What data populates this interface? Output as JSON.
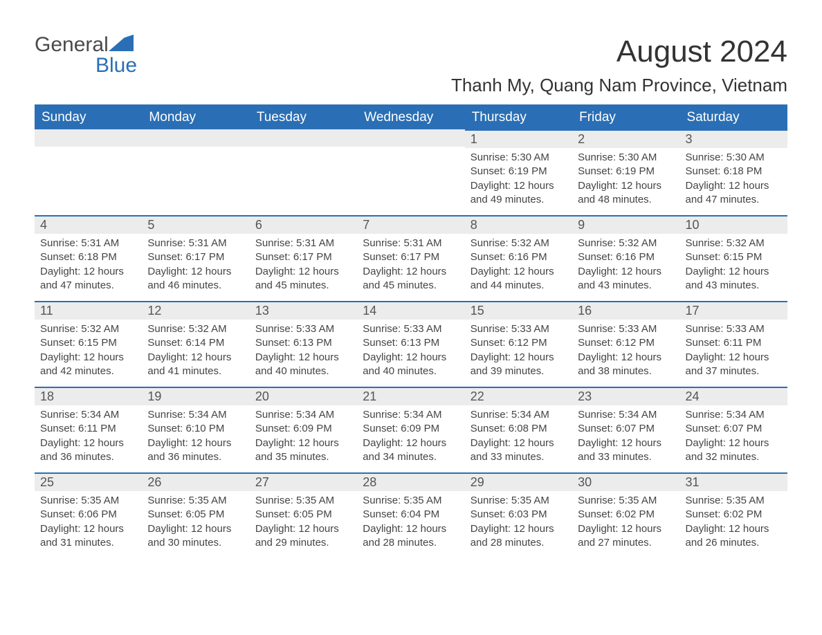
{
  "logo": {
    "word1": "General",
    "word2": "Blue",
    "mark_color": "#2a6fb5",
    "text_color": "#4a4a4a"
  },
  "title": "August 2024",
  "location": "Thanh My, Quang Nam Province, Vietnam",
  "colors": {
    "header_bg": "#2a6fb5",
    "header_text": "#ffffff",
    "daynum_bg": "#ececec",
    "daynum_text": "#555555",
    "body_text": "#444444",
    "row_border": "#2a6fb5",
    "page_bg": "#ffffff"
  },
  "typography": {
    "title_fontsize": 44,
    "location_fontsize": 26,
    "weekday_fontsize": 19,
    "daynum_fontsize": 18,
    "body_fontsize": 15,
    "logo_fontsize": 30
  },
  "calendar": {
    "type": "table",
    "weekdays": [
      "Sunday",
      "Monday",
      "Tuesday",
      "Wednesday",
      "Thursday",
      "Friday",
      "Saturday"
    ],
    "first_weekday_index": 4,
    "days": [
      {
        "n": 1,
        "sunrise": "5:30 AM",
        "sunset": "6:19 PM",
        "daylight": "12 hours and 49 minutes."
      },
      {
        "n": 2,
        "sunrise": "5:30 AM",
        "sunset": "6:19 PM",
        "daylight": "12 hours and 48 minutes."
      },
      {
        "n": 3,
        "sunrise": "5:30 AM",
        "sunset": "6:18 PM",
        "daylight": "12 hours and 47 minutes."
      },
      {
        "n": 4,
        "sunrise": "5:31 AM",
        "sunset": "6:18 PM",
        "daylight": "12 hours and 47 minutes."
      },
      {
        "n": 5,
        "sunrise": "5:31 AM",
        "sunset": "6:17 PM",
        "daylight": "12 hours and 46 minutes."
      },
      {
        "n": 6,
        "sunrise": "5:31 AM",
        "sunset": "6:17 PM",
        "daylight": "12 hours and 45 minutes."
      },
      {
        "n": 7,
        "sunrise": "5:31 AM",
        "sunset": "6:17 PM",
        "daylight": "12 hours and 45 minutes."
      },
      {
        "n": 8,
        "sunrise": "5:32 AM",
        "sunset": "6:16 PM",
        "daylight": "12 hours and 44 minutes."
      },
      {
        "n": 9,
        "sunrise": "5:32 AM",
        "sunset": "6:16 PM",
        "daylight": "12 hours and 43 minutes."
      },
      {
        "n": 10,
        "sunrise": "5:32 AM",
        "sunset": "6:15 PM",
        "daylight": "12 hours and 43 minutes."
      },
      {
        "n": 11,
        "sunrise": "5:32 AM",
        "sunset": "6:15 PM",
        "daylight": "12 hours and 42 minutes."
      },
      {
        "n": 12,
        "sunrise": "5:32 AM",
        "sunset": "6:14 PM",
        "daylight": "12 hours and 41 minutes."
      },
      {
        "n": 13,
        "sunrise": "5:33 AM",
        "sunset": "6:13 PM",
        "daylight": "12 hours and 40 minutes."
      },
      {
        "n": 14,
        "sunrise": "5:33 AM",
        "sunset": "6:13 PM",
        "daylight": "12 hours and 40 minutes."
      },
      {
        "n": 15,
        "sunrise": "5:33 AM",
        "sunset": "6:12 PM",
        "daylight": "12 hours and 39 minutes."
      },
      {
        "n": 16,
        "sunrise": "5:33 AM",
        "sunset": "6:12 PM",
        "daylight": "12 hours and 38 minutes."
      },
      {
        "n": 17,
        "sunrise": "5:33 AM",
        "sunset": "6:11 PM",
        "daylight": "12 hours and 37 minutes."
      },
      {
        "n": 18,
        "sunrise": "5:34 AM",
        "sunset": "6:11 PM",
        "daylight": "12 hours and 36 minutes."
      },
      {
        "n": 19,
        "sunrise": "5:34 AM",
        "sunset": "6:10 PM",
        "daylight": "12 hours and 36 minutes."
      },
      {
        "n": 20,
        "sunrise": "5:34 AM",
        "sunset": "6:09 PM",
        "daylight": "12 hours and 35 minutes."
      },
      {
        "n": 21,
        "sunrise": "5:34 AM",
        "sunset": "6:09 PM",
        "daylight": "12 hours and 34 minutes."
      },
      {
        "n": 22,
        "sunrise": "5:34 AM",
        "sunset": "6:08 PM",
        "daylight": "12 hours and 33 minutes."
      },
      {
        "n": 23,
        "sunrise": "5:34 AM",
        "sunset": "6:07 PM",
        "daylight": "12 hours and 33 minutes."
      },
      {
        "n": 24,
        "sunrise": "5:34 AM",
        "sunset": "6:07 PM",
        "daylight": "12 hours and 32 minutes."
      },
      {
        "n": 25,
        "sunrise": "5:35 AM",
        "sunset": "6:06 PM",
        "daylight": "12 hours and 31 minutes."
      },
      {
        "n": 26,
        "sunrise": "5:35 AM",
        "sunset": "6:05 PM",
        "daylight": "12 hours and 30 minutes."
      },
      {
        "n": 27,
        "sunrise": "5:35 AM",
        "sunset": "6:05 PM",
        "daylight": "12 hours and 29 minutes."
      },
      {
        "n": 28,
        "sunrise": "5:35 AM",
        "sunset": "6:04 PM",
        "daylight": "12 hours and 28 minutes."
      },
      {
        "n": 29,
        "sunrise": "5:35 AM",
        "sunset": "6:03 PM",
        "daylight": "12 hours and 28 minutes."
      },
      {
        "n": 30,
        "sunrise": "5:35 AM",
        "sunset": "6:02 PM",
        "daylight": "12 hours and 27 minutes."
      },
      {
        "n": 31,
        "sunrise": "5:35 AM",
        "sunset": "6:02 PM",
        "daylight": "12 hours and 26 minutes."
      }
    ],
    "labels": {
      "sunrise": "Sunrise:",
      "sunset": "Sunset:",
      "daylight": "Daylight:"
    }
  }
}
